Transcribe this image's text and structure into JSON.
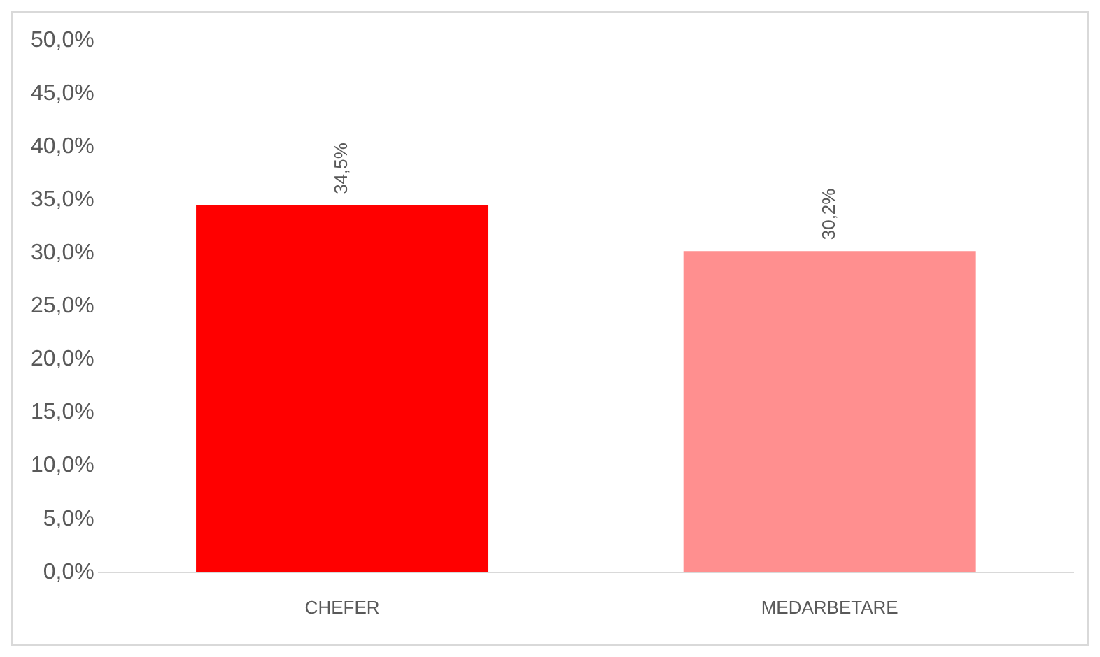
{
  "chart_data": {
    "type": "bar",
    "categories": [
      "CHEFER",
      "MEDARBETARE"
    ],
    "values": [
      34.5,
      30.2
    ],
    "colors": [
      "#ff0000",
      "#ff8f8f"
    ],
    "value_labels": [
      "34,5%",
      "30,2%"
    ],
    "ylim": [
      0,
      50
    ],
    "yticks": [
      {
        "value": 0,
        "label": "0,0%"
      },
      {
        "value": 5,
        "label": "5,0%"
      },
      {
        "value": 10,
        "label": "10,0%"
      },
      {
        "value": 15,
        "label": "15,0%"
      },
      {
        "value": 20,
        "label": "20,0%"
      },
      {
        "value": 25,
        "label": "25,0%"
      },
      {
        "value": 30,
        "label": "30,0%"
      },
      {
        "value": 35,
        "label": "35,0%"
      },
      {
        "value": 40,
        "label": "40,0%"
      },
      {
        "value": 45,
        "label": "45,0%"
      },
      {
        "value": 50,
        "label": "50,0%"
      }
    ],
    "legend": false
  }
}
